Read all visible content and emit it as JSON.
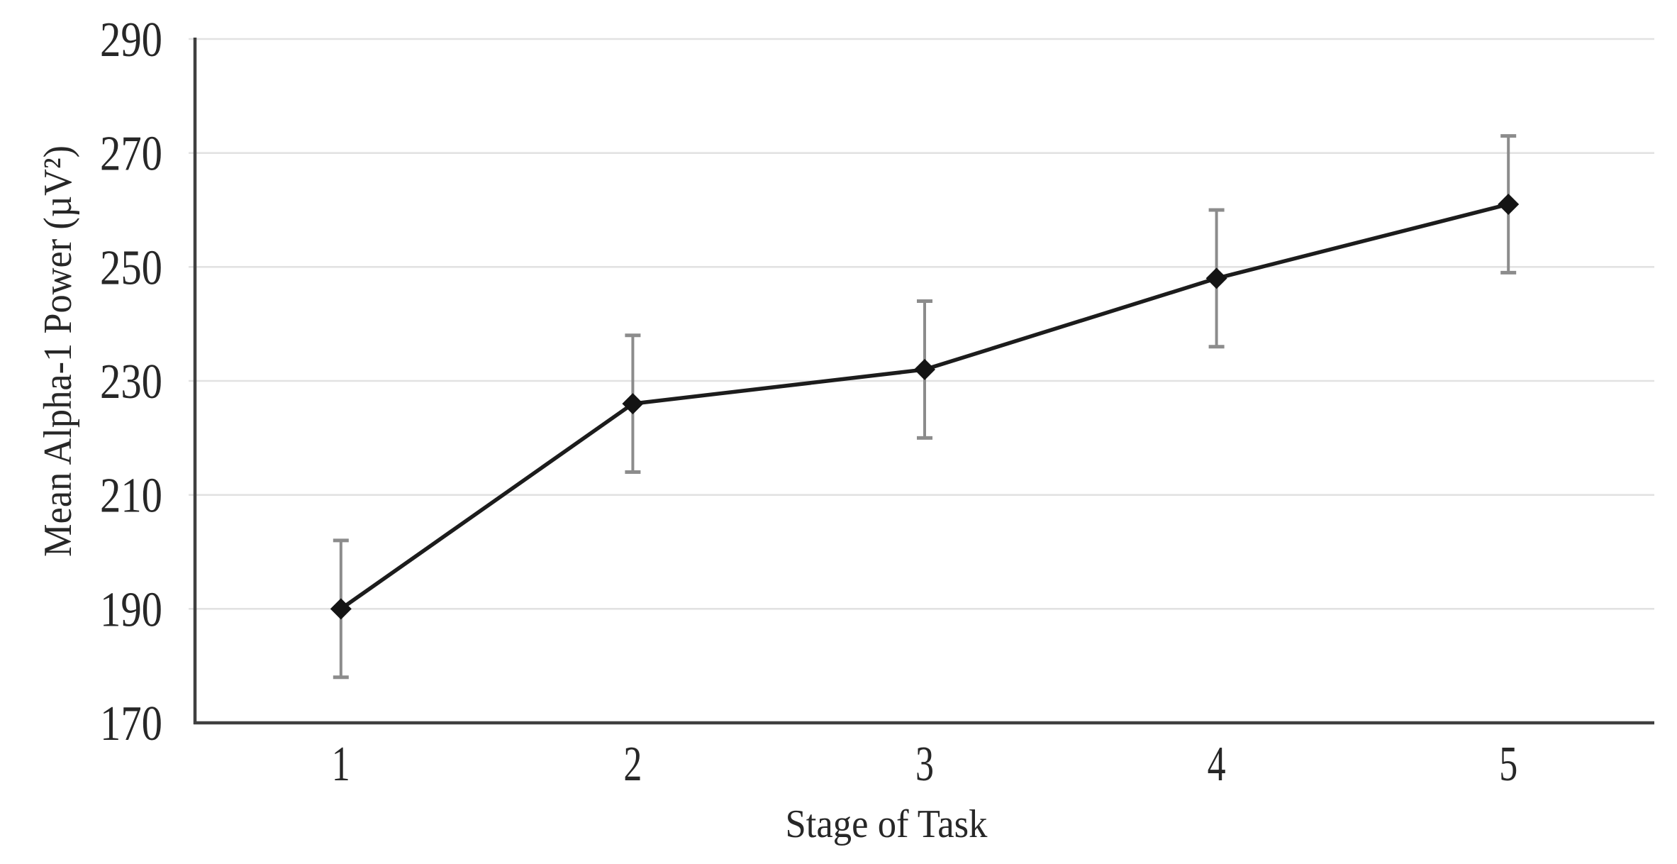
{
  "figure": {
    "background": "#ffffff"
  },
  "chart_data": {
    "type": "line",
    "title": "",
    "xlabel": "Stage of Task",
    "ylabel": "Mean Alpha-1 Power (µV²)",
    "categories": [
      "1",
      "2",
      "3",
      "4",
      "5"
    ],
    "series": [
      {
        "name": "Mean Alpha-1 Power",
        "values": [
          190,
          226,
          232,
          248,
          261
        ],
        "error_upper": [
          202,
          238,
          244,
          260,
          273
        ],
        "error_lower": [
          178,
          214,
          220,
          236,
          249
        ]
      }
    ],
    "ylim": [
      170,
      290
    ],
    "yticks": [
      170,
      190,
      210,
      230,
      250,
      270,
      290
    ],
    "ytick_labels": [
      "170",
      "190",
      "210",
      "230",
      "250",
      "270",
      "290"
    ],
    "grid": "horizontal",
    "legend": "none",
    "marker": "diamond",
    "colors": {
      "line": "#1c1c1c",
      "marker": "#141414",
      "error_bar": "#8c8c8c",
      "gridline": "#e2e2e2",
      "axis": "#3f3f3f",
      "text": "#272727"
    }
  }
}
